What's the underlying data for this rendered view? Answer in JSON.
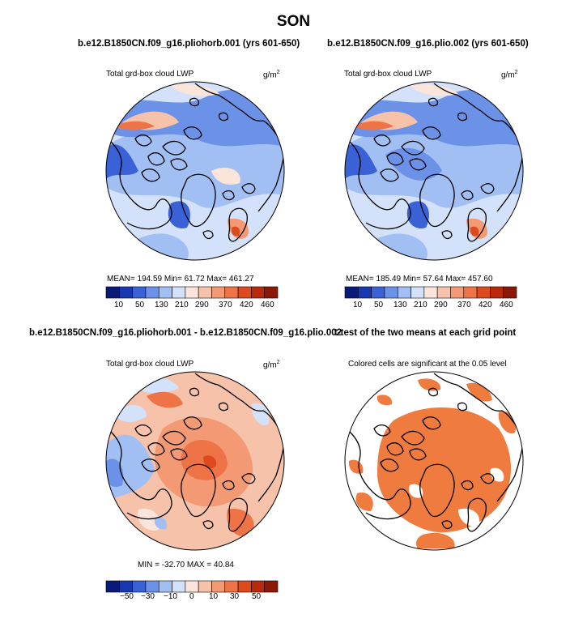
{
  "title": "SON",
  "colors": {
    "lwp_palette": [
      "#0a1a78",
      "#1838b0",
      "#3a62d6",
      "#6c92e8",
      "#a2bff3",
      "#d3e2fa",
      "#fbe4d9",
      "#f6c2aa",
      "#f39a74",
      "#ee7448",
      "#dc4a1e",
      "#b92a0c",
      "#8a1a06"
    ],
    "diff_palette": [
      "#0a1a78",
      "#1838b0",
      "#3a62d6",
      "#6c92e8",
      "#a2bff3",
      "#d3e2fa",
      "#fbe4d9",
      "#f6c2aa",
      "#f39a74",
      "#ee7448",
      "#dc4a1e",
      "#b92a0c",
      "#8a1a06"
    ],
    "significance": "#f07b3e"
  },
  "panels": {
    "p1": {
      "title": "b.e12.B1850CN.f09_g16.pliohorb.001 (yrs 601-650)",
      "variable": "Total grd-box cloud LWP",
      "units": "g/m",
      "units_exp": "2",
      "stats": "MEAN= 194.59   Min=   61.72   Max= 461.27",
      "colorbar_labels": [
        "10",
        "50",
        "130",
        "210",
        "290",
        "370",
        "420",
        "460"
      ]
    },
    "p2": {
      "title": "b.e12.B1850CN.f09_g16.plio.002 (yrs 601-650)",
      "variable": "Total grd-box cloud LWP",
      "units": "g/m",
      "units_exp": "2",
      "stats": "MEAN= 185.49   Min=   57.64   Max= 457.60",
      "colorbar_labels": [
        "10",
        "50",
        "130",
        "210",
        "290",
        "370",
        "420",
        "460"
      ]
    },
    "p3": {
      "title": "b.e12.B1850CN.f09_g16.pliohorb.001 - b.e12.B1850CN.f09_g16.plio.002",
      "variable": "Total grd-box cloud LWP",
      "units": "g/m",
      "units_exp": "2",
      "stats": "MIN = -32.70  MAX =  40.84",
      "colorbar_labels": [
        "−50",
        "−30",
        "−10",
        "0",
        "10",
        "30",
        "50"
      ]
    },
    "p4": {
      "title": "t-test of the two means at each grid point",
      "subtitle": "Colored cells are significant at the 0.05 level"
    }
  }
}
